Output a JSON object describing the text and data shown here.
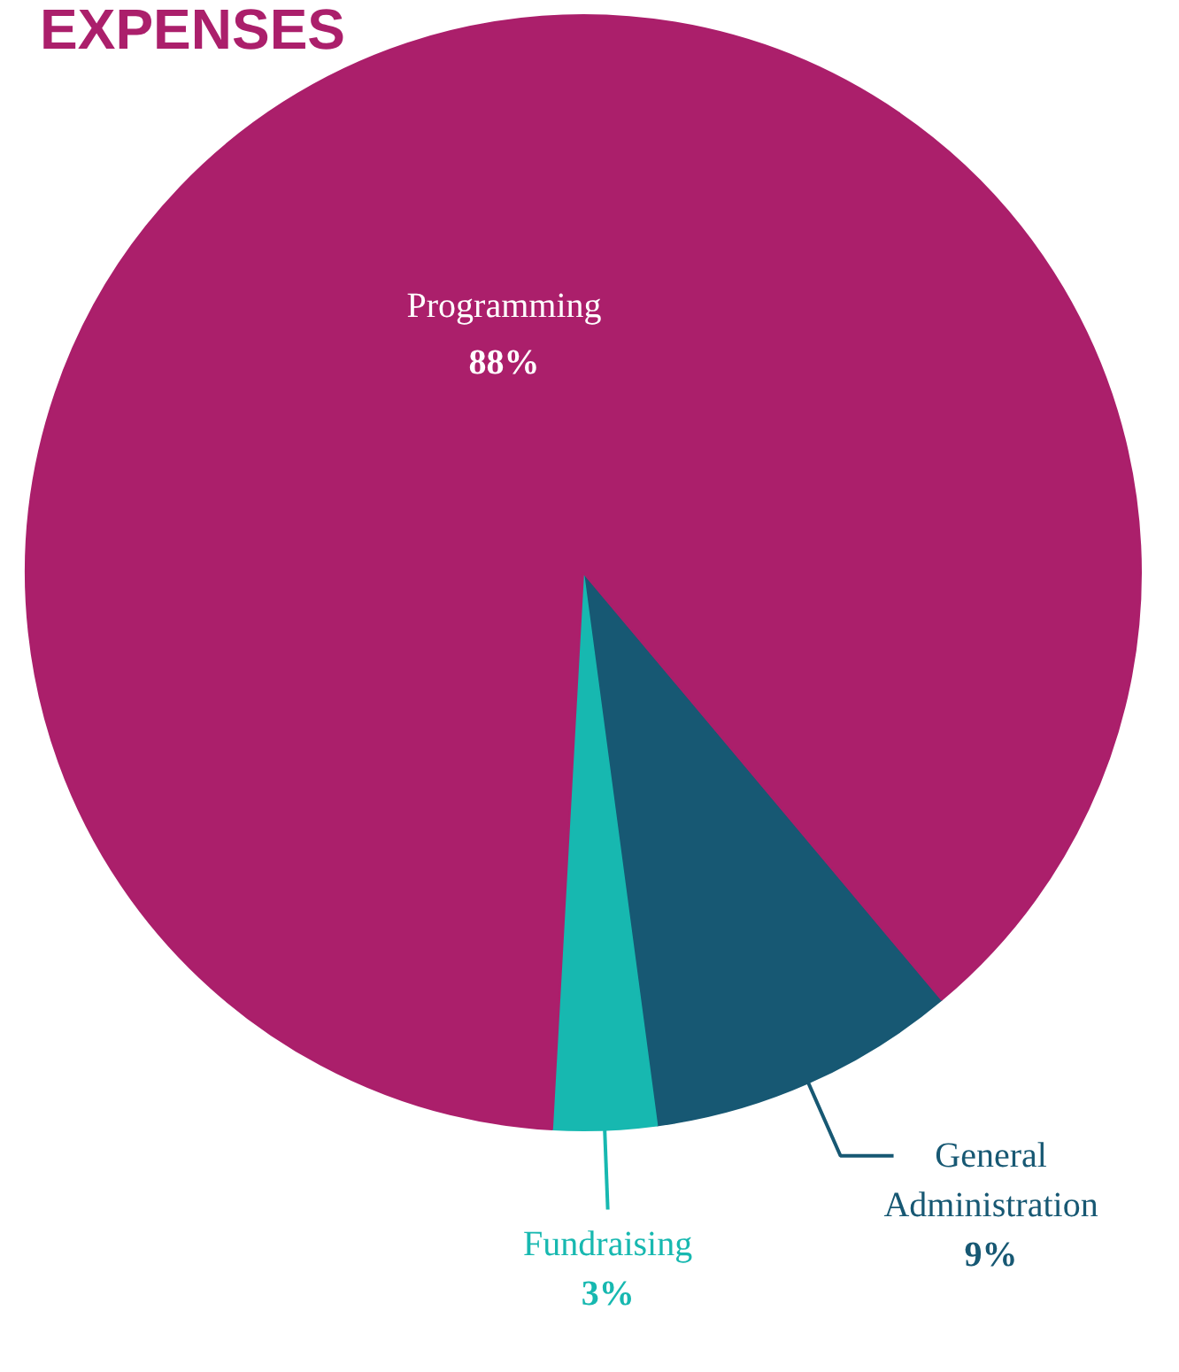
{
  "chart_data": {
    "type": "pie",
    "title": "EXPENSES",
    "categories": [
      "Programming",
      "General Administration",
      "Fundraising"
    ],
    "values": [
      88,
      9,
      3
    ],
    "value_labels": [
      "88%",
      "9%",
      "3%"
    ],
    "colors": [
      "#ab1f6b",
      "#175873",
      "#17b8b0"
    ]
  }
}
